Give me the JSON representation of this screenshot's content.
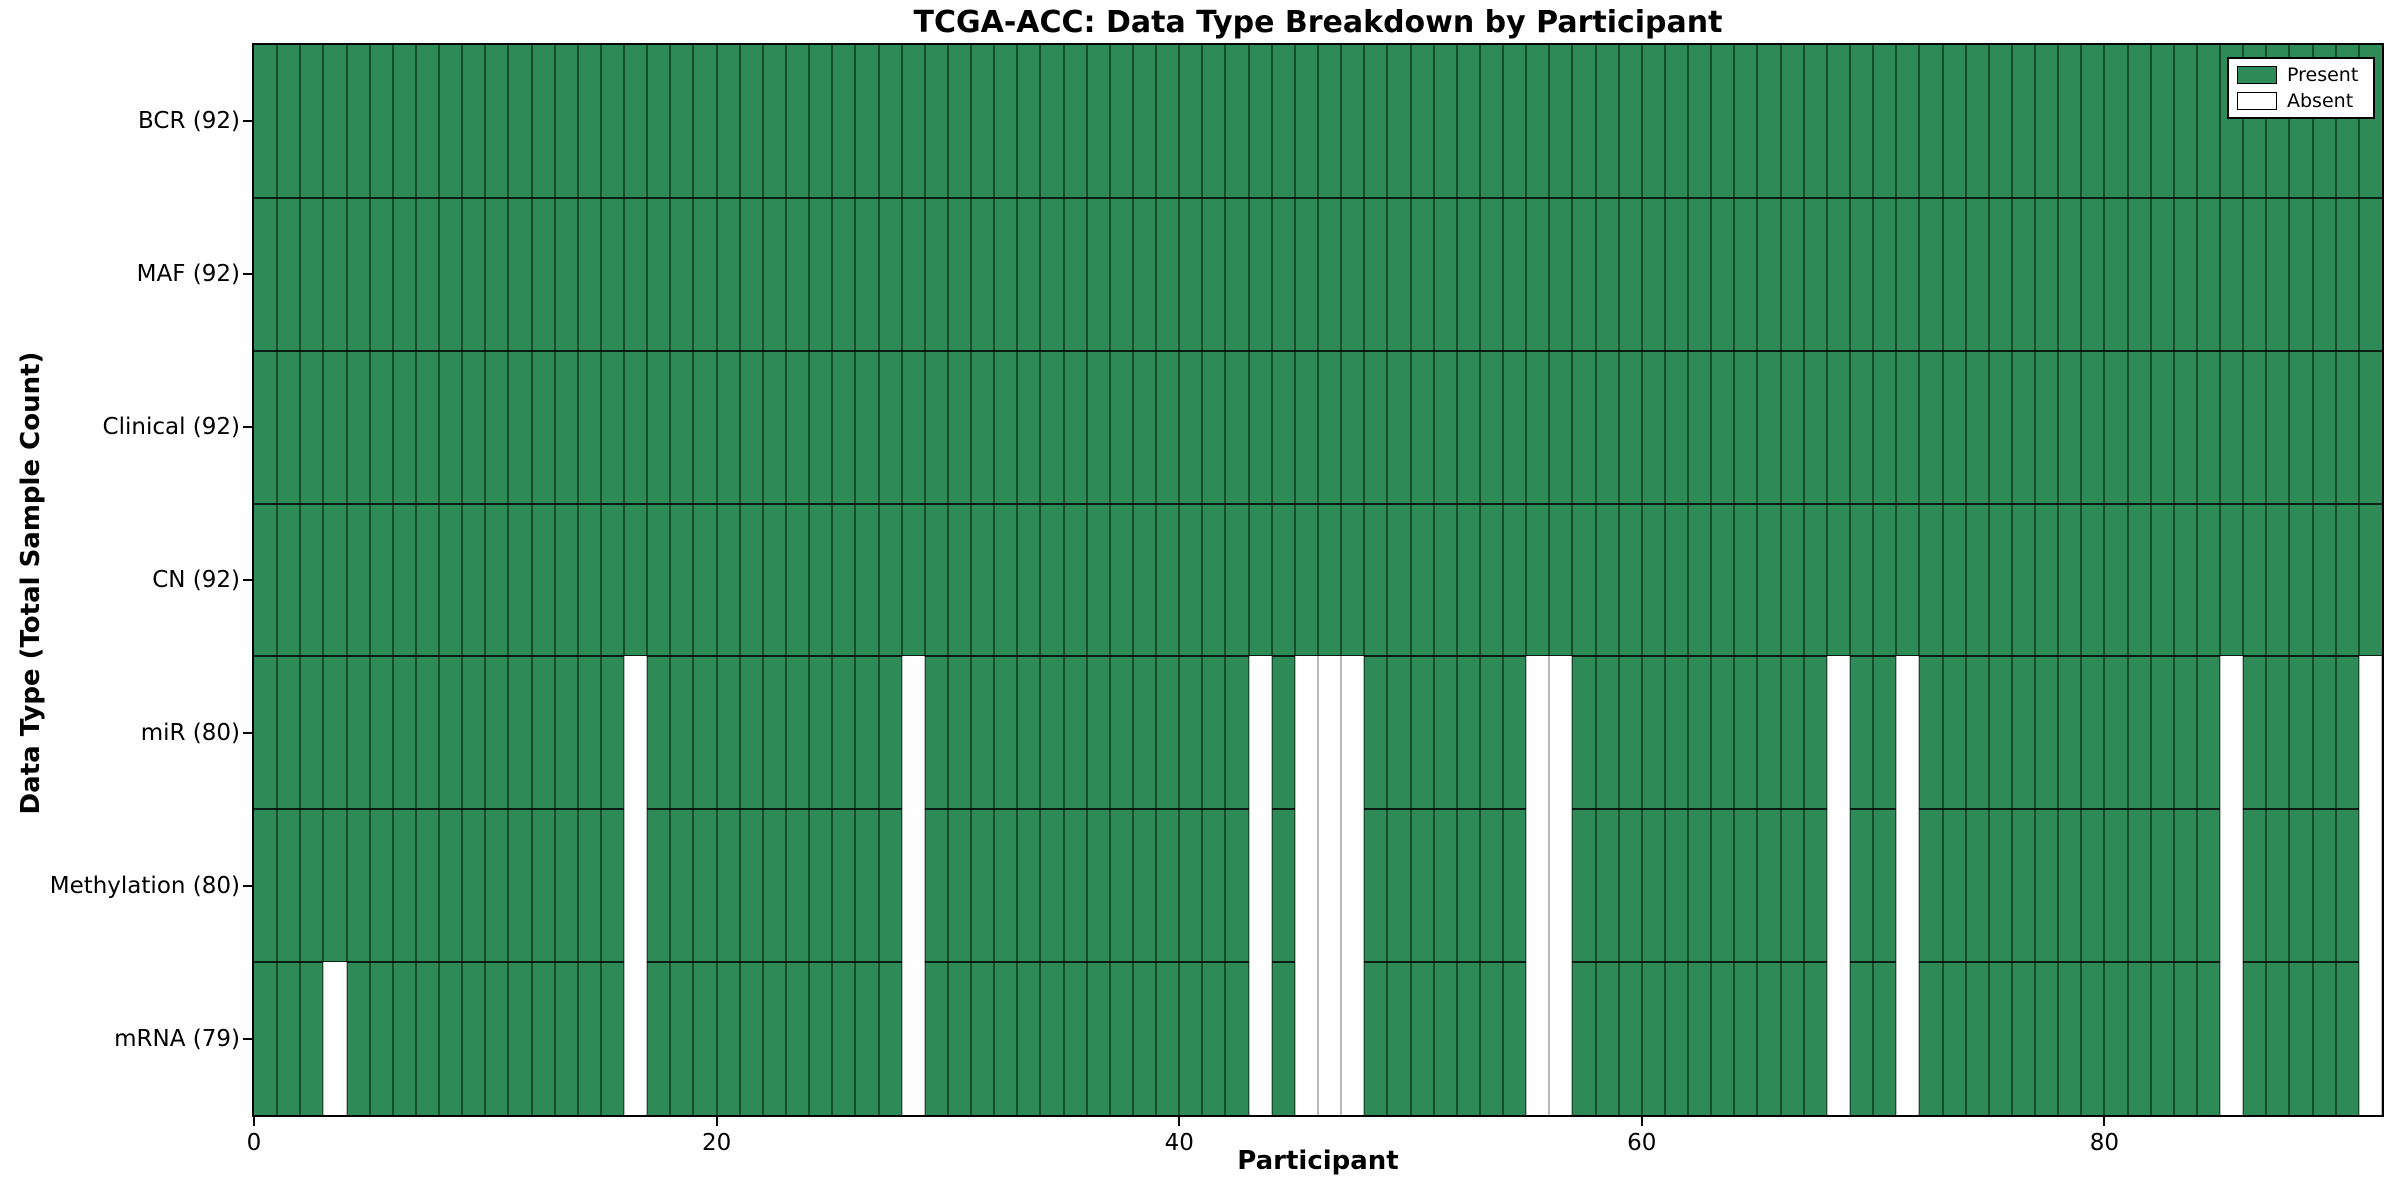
{
  "chart_data": {
    "type": "heatmap",
    "title": "TCGA-ACC: Data Type Breakdown by Participant",
    "xlabel": "Participant",
    "ylabel": "Data Type (Total Sample Count)",
    "xlim": [
      0,
      92
    ],
    "x_ticks": [
      0,
      20,
      40,
      60,
      80
    ],
    "n_participants": 92,
    "grid": "cell-edges",
    "legend_position": "upper right",
    "rows": [
      {
        "label": "BCR (92)",
        "data_type": "BCR",
        "total_samples": 92,
        "absent_participants": []
      },
      {
        "label": "MAF (92)",
        "data_type": "MAF",
        "total_samples": 92,
        "absent_participants": []
      },
      {
        "label": "Clinical (92)",
        "data_type": "Clinical",
        "total_samples": 92,
        "absent_participants": []
      },
      {
        "label": "CN (92)",
        "data_type": "CN",
        "total_samples": 92,
        "absent_participants": []
      },
      {
        "label": "miR (80)",
        "data_type": "miR",
        "total_samples": 80,
        "absent_participants": [
          16,
          28,
          43,
          45,
          46,
          47,
          55,
          56,
          68,
          71,
          85,
          91
        ]
      },
      {
        "label": "Methylation (80)",
        "data_type": "Methylation",
        "total_samples": 80,
        "absent_participants": [
          16,
          28,
          43,
          45,
          46,
          47,
          55,
          56,
          68,
          71,
          85,
          91
        ]
      },
      {
        "label": "mRNA (79)",
        "data_type": "mRNA",
        "total_samples": 79,
        "absent_participants": [
          3,
          16,
          28,
          43,
          45,
          46,
          47,
          55,
          56,
          68,
          71,
          85,
          91
        ]
      }
    ],
    "legend": [
      {
        "label": "Present",
        "color": "#2e8b57"
      },
      {
        "label": "Absent",
        "color": "#ffffff"
      }
    ],
    "colors": {
      "present": "#2e8b57",
      "absent": "#ffffff",
      "edge": "#000000"
    }
  }
}
